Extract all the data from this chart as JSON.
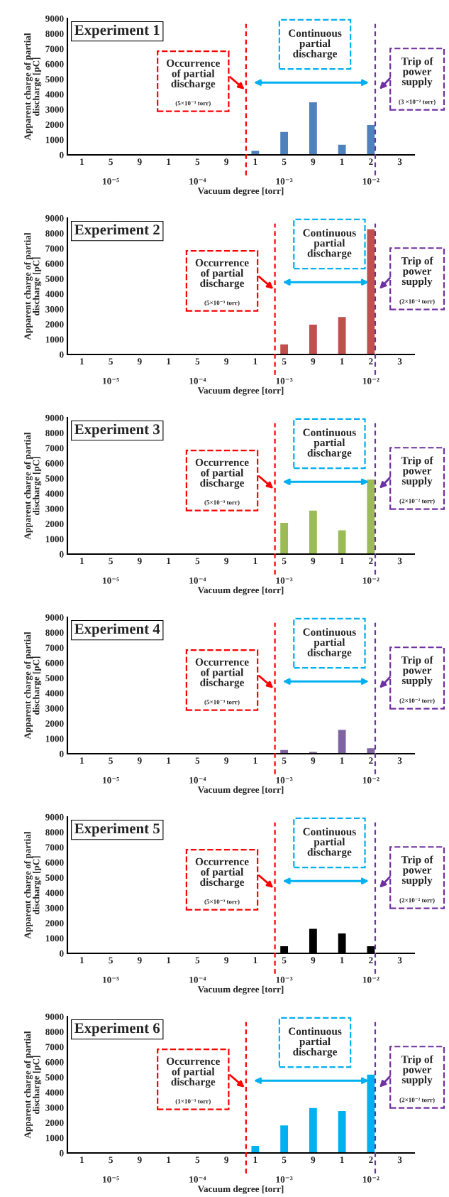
{
  "chart_data": [
    {
      "type": "bar",
      "title": "Experiment 1",
      "color": "#4f81bd",
      "categories": [
        "1",
        "5\n\n10⁻⁵",
        "9",
        "1",
        "5\n\n10⁻⁴",
        "9",
        "1",
        "5\n\n10⁻³",
        "9",
        "1",
        "2\n\n10⁻²",
        "3"
      ],
      "values": [
        null,
        null,
        null,
        null,
        null,
        null,
        300,
        1550,
        3500,
        700,
        2000,
        null
      ],
      "xlabel": "Vacuum degree [torr]",
      "ylabel": "Apparent charge of partial\ndischarge [pC]",
      "ylim": [
        0,
        9000
      ],
      "yticks": [
        0,
        1000,
        2000,
        3000,
        4000,
        5000,
        6000,
        7000,
        8000,
        9000
      ],
      "annotations": [
        "Occurrence\nof partial\ndischarge",
        "(5×10⁻³ torr)",
        "Continuous\npartial\ndischarge",
        "Trip of\npower\nsupply",
        "(3 ×10⁻² torr)"
      ]
    },
    {
      "type": "bar",
      "title": "Experiment 2",
      "color": "#c0504d",
      "categories": [
        "1",
        "5\n\n10⁻⁵",
        "9",
        "1",
        "5\n\n10⁻⁴",
        "9",
        "1",
        "5\n\n10⁻³",
        "9",
        "1",
        "2\n\n10⁻²",
        "3"
      ],
      "values": [
        null,
        null,
        null,
        null,
        null,
        null,
        null,
        700,
        2000,
        2500,
        8300,
        null
      ],
      "xlabel": "Vacuum degree [torr]",
      "ylabel": "Apparent charge of partial\ndischarge [pC]",
      "ylim": [
        0,
        9000
      ],
      "yticks": [
        0,
        1000,
        2000,
        3000,
        4000,
        5000,
        6000,
        7000,
        8000,
        9000
      ],
      "annotations": [
        "Occurrence\nof partial\ndischarge",
        "(5×10⁻³ torr)",
        "Continuous\npartial\ndischarge",
        "Trip of\npower\nsupply",
        "(2×10⁻² torr)"
      ]
    },
    {
      "type": "bar",
      "title": "Experiment 3",
      "color": "#9bbb59",
      "categories": [
        "1",
        "5\n\n10⁻⁵",
        "9",
        "1",
        "5\n\n10⁻⁴",
        "9",
        "1",
        "5\n\n10⁻³",
        "9",
        "1",
        "2\n\n10⁻²",
        "3"
      ],
      "values": [
        null,
        null,
        null,
        null,
        null,
        null,
        null,
        2100,
        2900,
        1600,
        4950,
        null
      ],
      "xlabel": "Vacuum degree [torr]",
      "ylabel": "Apparent charge of partial\ndischarge [pC]",
      "ylim": [
        0,
        9000
      ],
      "yticks": [
        0,
        1000,
        2000,
        3000,
        4000,
        5000,
        6000,
        7000,
        8000,
        9000
      ],
      "annotations": [
        "Occurrence\nof partial\ndischarge",
        "(5×10⁻³ torr)",
        "Continuous\npartial\ndischarge",
        "Trip of\npower\nsupply",
        "(2×10⁻² torr)"
      ]
    },
    {
      "type": "bar",
      "title": "Experiment 4",
      "color": "#8064a2",
      "categories": [
        "1",
        "5\n\n10⁻⁵",
        "9",
        "1",
        "5\n\n10⁻⁴",
        "9",
        "1",
        "5\n\n10⁻³",
        "9",
        "1",
        "2\n\n10⁻²",
        "3"
      ],
      "values": [
        null,
        null,
        null,
        null,
        null,
        null,
        null,
        280,
        150,
        1600,
        400,
        null
      ],
      "xlabel": "Vacuum degree [torr]",
      "ylabel": "Apparent charge of partial\ndischarge [pC]",
      "ylim": [
        0,
        9000
      ],
      "yticks": [
        0,
        1000,
        2000,
        3000,
        4000,
        5000,
        6000,
        7000,
        8000,
        9000
      ],
      "annotations": [
        "Occurrence\nof partial\ndischarge",
        "(5×10⁻³ torr)",
        "Continuous\npartial\ndischarge",
        "Trip of\npower\nsupply",
        "(2×10⁻² torr)"
      ]
    },
    {
      "type": "bar",
      "title": "Experiment 5",
      "color": "#000000",
      "categories": [
        "1",
        "5\n\n10⁻⁵",
        "9",
        "1",
        "5\n\n10⁻⁴",
        "9",
        "1",
        "5\n\n10⁻³",
        "9",
        "1",
        "2\n\n10⁻²",
        "3"
      ],
      "values": [
        null,
        null,
        null,
        null,
        null,
        null,
        null,
        500,
        1650,
        1350,
        500,
        null
      ],
      "xlabel": "Vacuum degree [torr]",
      "ylabel": "Apparent charge of partial\ndischarge [pC]",
      "ylim": [
        0,
        9000
      ],
      "yticks": [
        0,
        1000,
        2000,
        3000,
        4000,
        5000,
        6000,
        7000,
        8000,
        9000
      ],
      "annotations": [
        "Occurrence\nof partial\ndischarge",
        "(5×10⁻³ torr)",
        "Continuous\npartial\ndischarge",
        "Trip of\npower\nsupply",
        "(2×10⁻² torr)"
      ]
    },
    {
      "type": "bar",
      "title": "Experiment 6",
      "color": "#00b0f0",
      "categories": [
        "1",
        "5\n\n10⁻⁵",
        "9",
        "1",
        "5\n\n10⁻⁴",
        "9",
        "1",
        "5\n\n10⁻³",
        "9",
        "1",
        "2\n\n10⁻²",
        "3"
      ],
      "values": [
        null,
        null,
        null,
        null,
        null,
        null,
        500,
        1850,
        3000,
        2800,
        5200,
        null
      ],
      "xlabel": "Vacuum degree [torr]",
      "ylabel": "Apparent charge of partial\ndischarge [pC]",
      "ylim": [
        0,
        9000
      ],
      "yticks": [
        0,
        1000,
        2000,
        3000,
        4000,
        5000,
        6000,
        7000,
        8000,
        9000
      ],
      "annotations": [
        "Occurrence\nof partial\ndischarge",
        "(1×10⁻³ torr)",
        "Continuous\npartial\ndischarge",
        "Trip of\npower\nsupply",
        "(2×10⁻² torr)"
      ]
    }
  ]
}
